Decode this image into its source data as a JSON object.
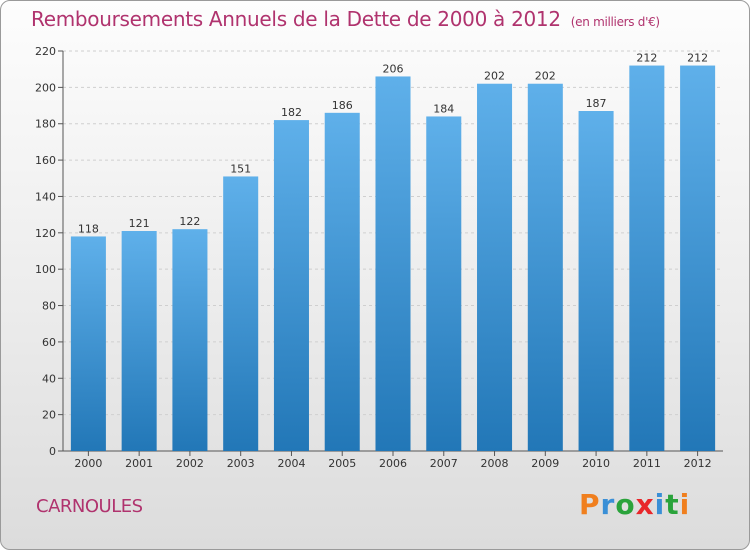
{
  "header": {
    "title": "Remboursements Annuels de la Dette de 2000 à 2012",
    "unit": "(en milliers d'€)"
  },
  "footer": {
    "city": "CARNOULES",
    "brand": "Proxiti"
  },
  "colors": {
    "title": "#b0336e",
    "bar_top": "#5fb0ea",
    "bar_bottom": "#2277b7",
    "brand_letters": [
      "#f07f1e",
      "#3a8fd6",
      "#2aa33b",
      "#e8262a",
      "#3a8fd6",
      "#2aa33b",
      "#f07f1e"
    ]
  },
  "chart_data": {
    "type": "bar",
    "title": "Remboursements Annuels de la Dette de 2000 à 2012",
    "xlabel": "",
    "ylabel": "",
    "categories": [
      "2000",
      "2001",
      "2002",
      "2003",
      "2004",
      "2005",
      "2006",
      "2007",
      "2008",
      "2009",
      "2010",
      "2011",
      "2012"
    ],
    "values": [
      118,
      121,
      122,
      151,
      182,
      186,
      206,
      184,
      202,
      202,
      187,
      212,
      212
    ],
    "value_labels": [
      "118",
      "121",
      "122",
      "151",
      "182",
      "186",
      "206",
      "184",
      "202",
      "202",
      "187",
      "212",
      "212"
    ],
    "ylim": [
      0,
      220
    ],
    "yticks": [
      0,
      20,
      40,
      60,
      80,
      100,
      120,
      140,
      160,
      180,
      200,
      220
    ],
    "grid": true
  }
}
